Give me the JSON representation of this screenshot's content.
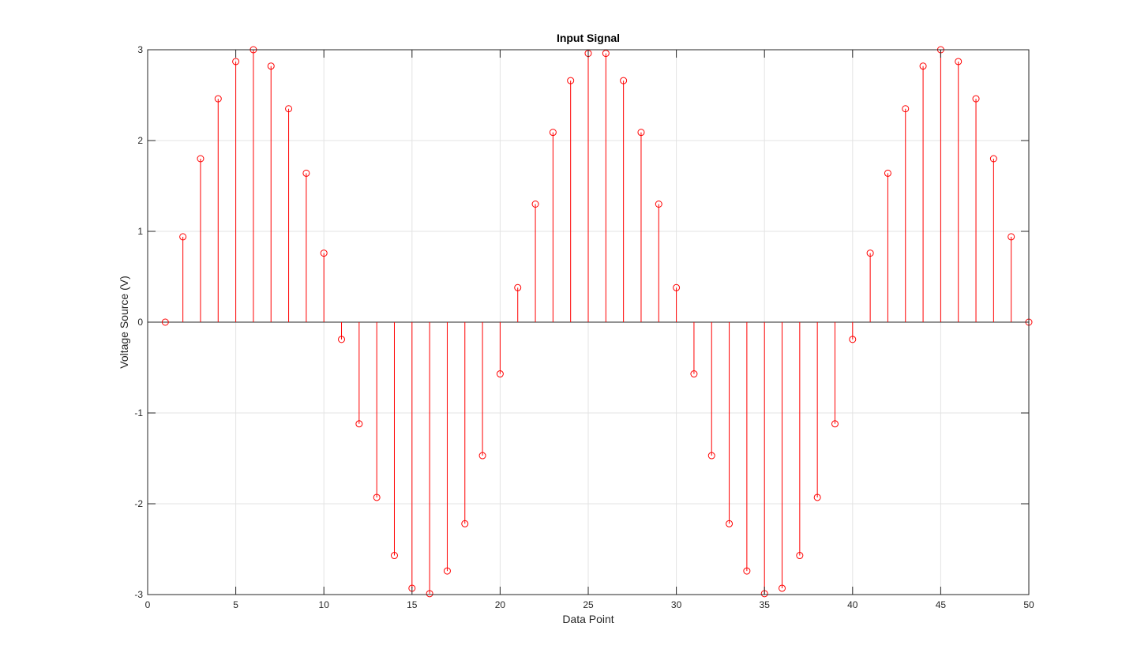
{
  "chart_data": {
    "type": "stem",
    "title": "Input Signal",
    "xlabel": "Data Point",
    "ylabel": "Voltage Source (V)",
    "xlim": [
      0,
      50
    ],
    "ylim": [
      -3,
      3
    ],
    "xticks": [
      0,
      5,
      10,
      15,
      20,
      25,
      30,
      35,
      40,
      45,
      50
    ],
    "yticks": [
      -3,
      -2,
      -1,
      0,
      1,
      2,
      3
    ],
    "grid": true,
    "marker": "circle",
    "color": "#ff0000",
    "x": [
      1,
      2,
      3,
      4,
      5,
      6,
      7,
      8,
      9,
      10,
      11,
      12,
      13,
      14,
      15,
      16,
      17,
      18,
      19,
      20,
      21,
      22,
      23,
      24,
      25,
      26,
      27,
      28,
      29,
      30,
      31,
      32,
      33,
      34,
      35,
      36,
      37,
      38,
      39,
      40,
      41,
      42,
      43,
      44,
      45,
      46,
      47,
      48,
      49,
      50
    ],
    "y": [
      0,
      0.94,
      1.8,
      2.46,
      2.87,
      3.0,
      2.82,
      2.35,
      1.64,
      0.76,
      -0.19,
      -1.12,
      -1.93,
      -2.57,
      -2.93,
      -2.99,
      -2.74,
      -2.22,
      -1.47,
      -0.57,
      0.38,
      1.3,
      2.09,
      2.66,
      2.96,
      2.96,
      2.66,
      2.09,
      1.3,
      0.38,
      -0.57,
      -1.47,
      -2.22,
      -2.74,
      -2.99,
      -2.93,
      -2.57,
      -1.93,
      -1.12,
      -0.19,
      0.76,
      1.64,
      2.35,
      2.82,
      3.0,
      2.87,
      2.46,
      1.8,
      0.94,
      0
    ]
  }
}
